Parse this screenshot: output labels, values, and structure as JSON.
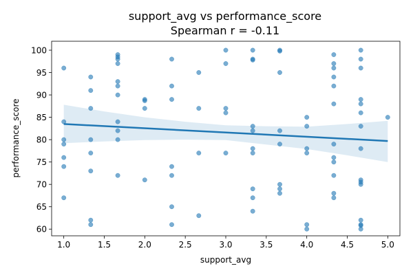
{
  "chart_data": {
    "type": "scatter",
    "title": "support_avg vs performance_score",
    "subtitle": "Spearman r = -0.11",
    "xlabel": "support_avg",
    "ylabel": "performance_score",
    "xlim": [
      0.85,
      5.15
    ],
    "ylim": [
      58.5,
      102
    ],
    "xticks": [
      "1.0",
      "1.5",
      "2.0",
      "2.5",
      "3.0",
      "3.5",
      "4.0",
      "4.5",
      "5.0"
    ],
    "yticks": [
      "60",
      "65",
      "70",
      "75",
      "80",
      "85",
      "90",
      "95",
      "100"
    ],
    "grid": false,
    "colors": {
      "points": "#1f77b4",
      "line": "#1f77b4",
      "band": "#1f77b4"
    },
    "points": [
      [
        1.0,
        96
      ],
      [
        1.0,
        84
      ],
      [
        1.0,
        80
      ],
      [
        1.0,
        79
      ],
      [
        1.0,
        76
      ],
      [
        1.0,
        74
      ],
      [
        1.0,
        67
      ],
      [
        1.333,
        94
      ],
      [
        1.333,
        91
      ],
      [
        1.333,
        87
      ],
      [
        1.333,
        80
      ],
      [
        1.333,
        77
      ],
      [
        1.333,
        73
      ],
      [
        1.333,
        62
      ],
      [
        1.333,
        61
      ],
      [
        1.667,
        99
      ],
      [
        1.667,
        98.5
      ],
      [
        1.667,
        98
      ],
      [
        1.667,
        97
      ],
      [
        1.667,
        93
      ],
      [
        1.667,
        92
      ],
      [
        1.667,
        90
      ],
      [
        1.667,
        84
      ],
      [
        1.667,
        82
      ],
      [
        1.667,
        80
      ],
      [
        1.667,
        72
      ],
      [
        2.0,
        89
      ],
      [
        2.0,
        88.7
      ],
      [
        2.0,
        87
      ],
      [
        2.0,
        71
      ],
      [
        2.333,
        98
      ],
      [
        2.333,
        92
      ],
      [
        2.333,
        89
      ],
      [
        2.333,
        74
      ],
      [
        2.333,
        72
      ],
      [
        2.333,
        65
      ],
      [
        2.333,
        61
      ],
      [
        2.667,
        95
      ],
      [
        2.667,
        87
      ],
      [
        2.667,
        77
      ],
      [
        2.667,
        63
      ],
      [
        3.0,
        100
      ],
      [
        3.0,
        97
      ],
      [
        3.0,
        87
      ],
      [
        3.0,
        86
      ],
      [
        3.0,
        77
      ],
      [
        3.333,
        100
      ],
      [
        3.333,
        98
      ],
      [
        3.333,
        97.8
      ],
      [
        3.333,
        83
      ],
      [
        3.333,
        82
      ],
      [
        3.333,
        78
      ],
      [
        3.333,
        77
      ],
      [
        3.333,
        69
      ],
      [
        3.333,
        67
      ],
      [
        3.333,
        64
      ],
      [
        3.667,
        100
      ],
      [
        3.667,
        99.8
      ],
      [
        3.667,
        95
      ],
      [
        3.667,
        82
      ],
      [
        3.667,
        79
      ],
      [
        3.667,
        70
      ],
      [
        3.667,
        69
      ],
      [
        3.667,
        68
      ],
      [
        4.0,
        85
      ],
      [
        4.0,
        83
      ],
      [
        4.0,
        78
      ],
      [
        4.0,
        77
      ],
      [
        4.0,
        61
      ],
      [
        4.0,
        60
      ],
      [
        4.333,
        99
      ],
      [
        4.333,
        97
      ],
      [
        4.333,
        96
      ],
      [
        4.333,
        94
      ],
      [
        4.333,
        92
      ],
      [
        4.333,
        88
      ],
      [
        4.333,
        79
      ],
      [
        4.333,
        76
      ],
      [
        4.333,
        75
      ],
      [
        4.333,
        72
      ],
      [
        4.333,
        68
      ],
      [
        4.333,
        67
      ],
      [
        4.667,
        100
      ],
      [
        4.667,
        98
      ],
      [
        4.667,
        96
      ],
      [
        4.667,
        89
      ],
      [
        4.667,
        88
      ],
      [
        4.667,
        86
      ],
      [
        4.667,
        83
      ],
      [
        4.667,
        78
      ],
      [
        4.667,
        71
      ],
      [
        4.667,
        70.5
      ],
      [
        4.667,
        70
      ],
      [
        4.667,
        62
      ],
      [
        4.667,
        61
      ],
      [
        4.667,
        60.8
      ],
      [
        4.667,
        60
      ],
      [
        5.0,
        85
      ]
    ],
    "regression": {
      "x": [
        1.0,
        5.0
      ],
      "y": [
        83.5,
        79.7
      ]
    },
    "confidence_band": {
      "x": [
        1.0,
        1.5,
        2.0,
        2.5,
        3.0,
        3.5,
        4.0,
        4.5,
        5.0
      ],
      "upper": [
        87.8,
        86.3,
        85.0,
        84.0,
        83.2,
        83.0,
        82.9,
        83.5,
        84.2
      ],
      "lower": [
        79.2,
        79.6,
        79.9,
        80.0,
        79.9,
        78.9,
        77.9,
        76.5,
        75.0
      ]
    }
  }
}
